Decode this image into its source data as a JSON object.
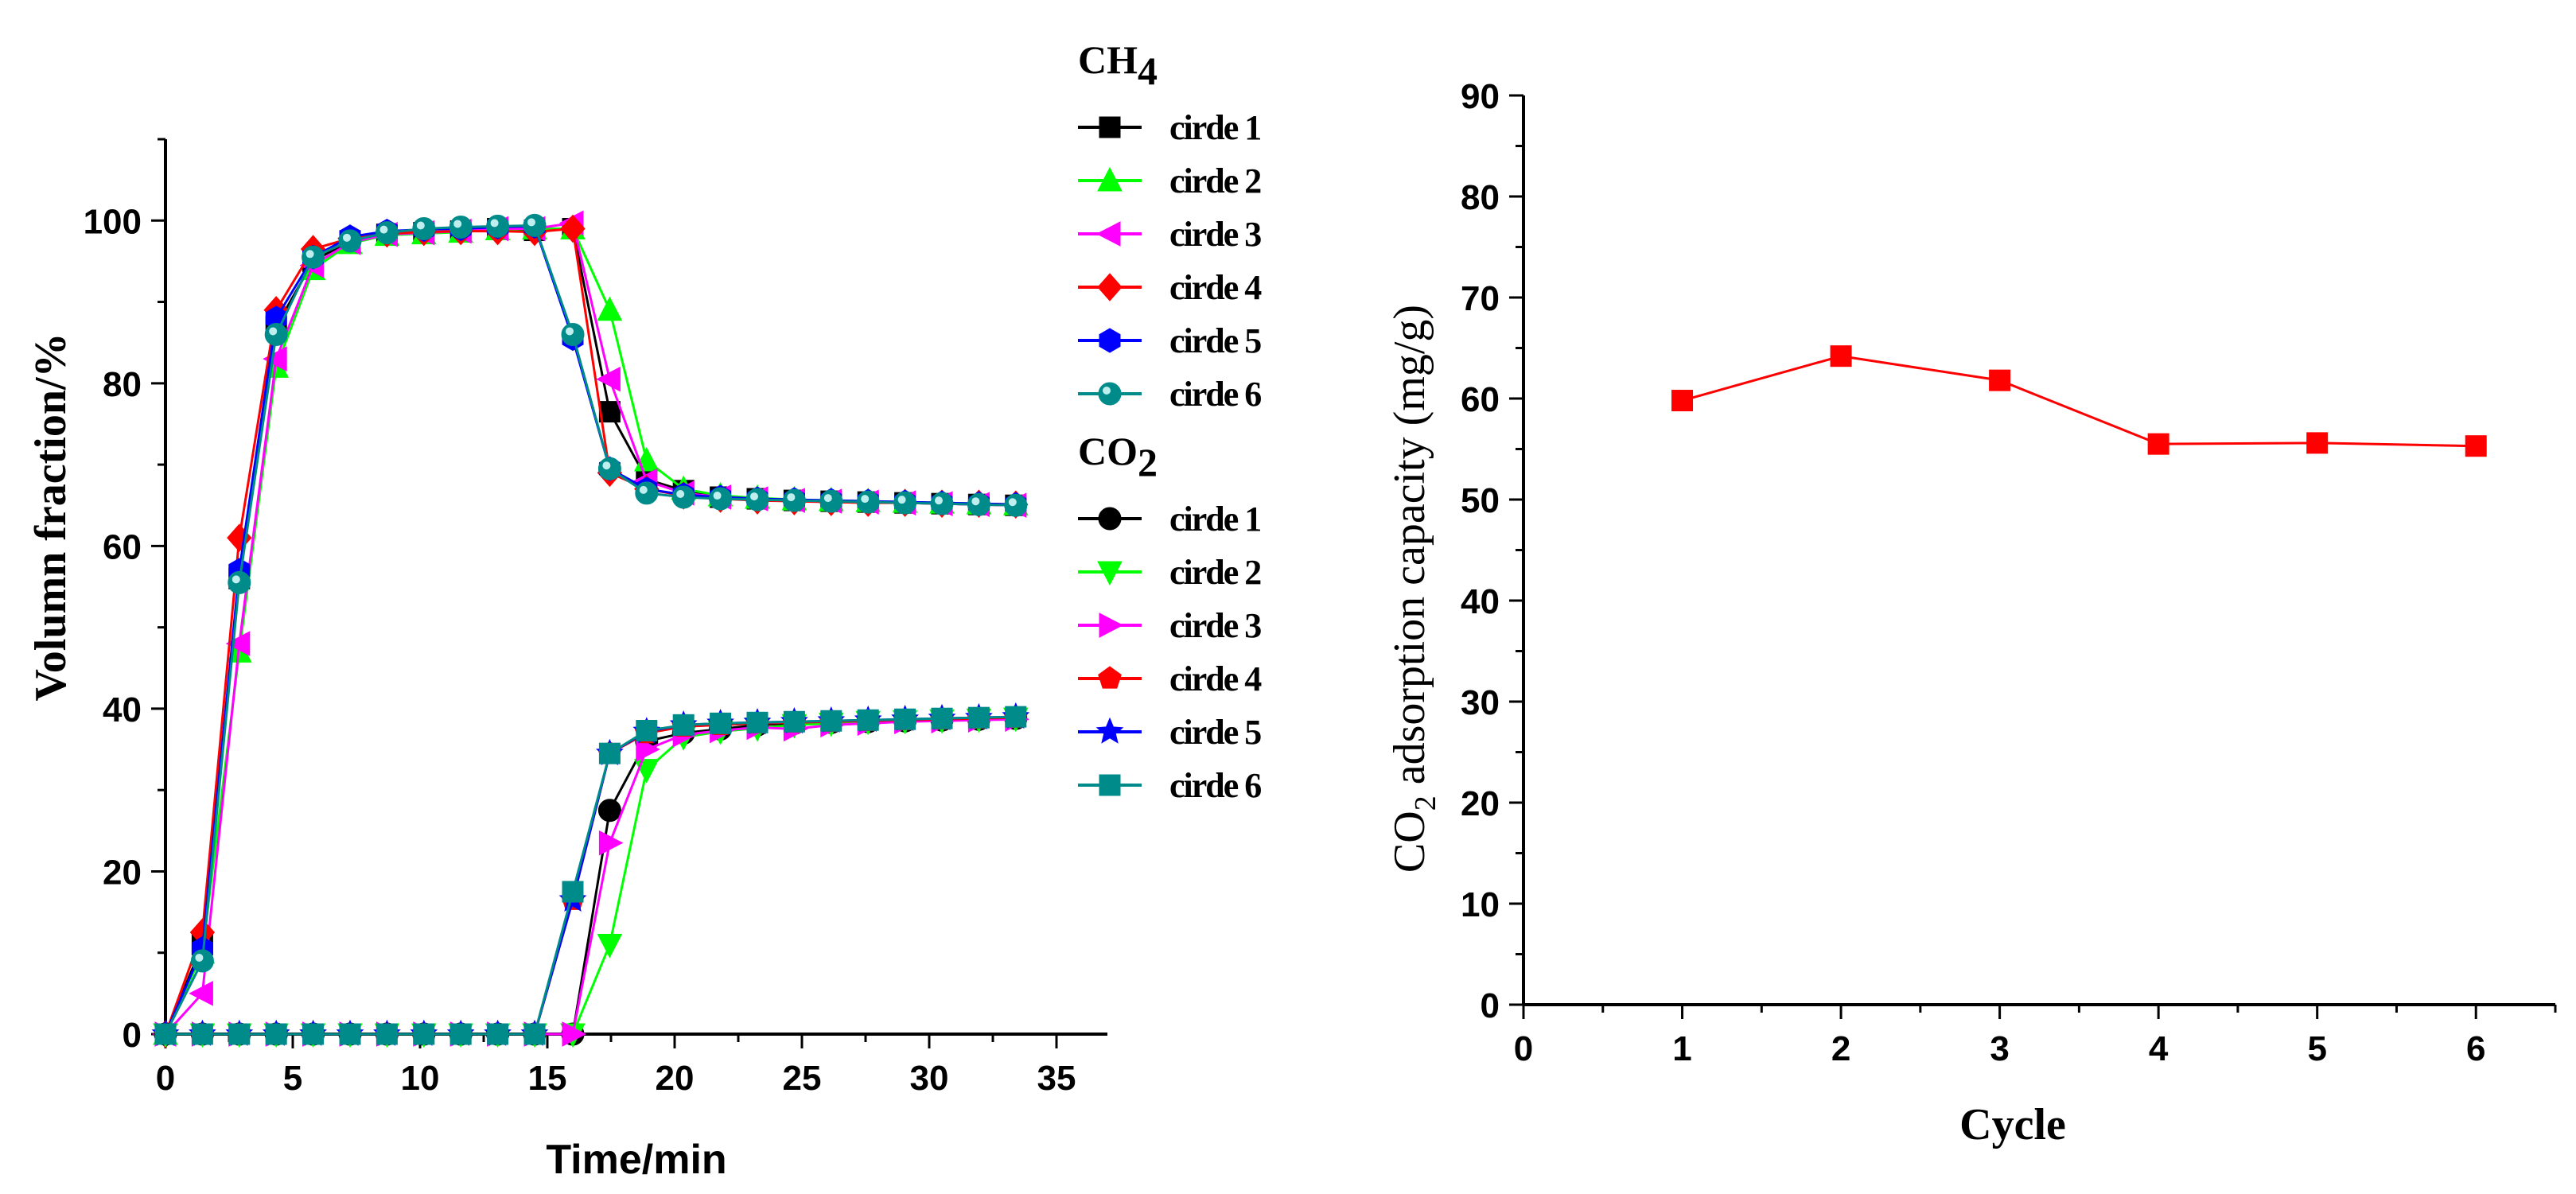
{
  "chart_data": [
    {
      "type": "line",
      "title": "",
      "xlabel": "Time/min",
      "ylabel": "Volumn fraction/%",
      "xlim": [
        0,
        37
      ],
      "ylim": [
        0,
        110
      ],
      "xticks": [
        0,
        5,
        10,
        15,
        20,
        25,
        30,
        35
      ],
      "yticks": [
        0,
        20,
        40,
        60,
        80,
        100
      ],
      "x": [
        0,
        1.45,
        2.9,
        4.35,
        5.8,
        7.25,
        8.7,
        10.15,
        11.6,
        13.05,
        14.5,
        16.0,
        17.45,
        18.9,
        20.35,
        21.8,
        23.25,
        24.7,
        26.15,
        27.6,
        29.05,
        30.5,
        31.95,
        33.4
      ],
      "legend_groups": [
        {
          "heading_main": "CH",
          "heading_sub": "4",
          "series": [
            {
              "name": "cirde 1",
              "color": "#000000",
              "marker": "square",
              "values": [
                0,
                11,
                56,
                87,
                95,
                97.5,
                98.3,
                98.5,
                98.7,
                99,
                98.8,
                99,
                76.5,
                68.2,
                66.8,
                66,
                65.8,
                65.6,
                65.5,
                65.4,
                65.3,
                65.2,
                65.1,
                65
              ]
            },
            {
              "name": "cirde 2",
              "color": "#00ff00",
              "marker": "triangle-up",
              "values": [
                0,
                10,
                47,
                82,
                94,
                97.2,
                98.2,
                98.4,
                98.6,
                98.9,
                99,
                99,
                89,
                70.5,
                67,
                66.2,
                65.9,
                65.7,
                65.6,
                65.5,
                65.4,
                65.3,
                65.2,
                65.1
              ]
            },
            {
              "name": "cirde 3",
              "color": "#ff00ff",
              "marker": "triangle-left",
              "values": [
                0,
                5,
                48,
                83,
                94.5,
                97.3,
                98.3,
                98.5,
                98.7,
                99,
                99,
                99.7,
                80.5,
                68,
                66.5,
                66,
                65.8,
                65.6,
                65.5,
                65.4,
                65.3,
                65.2,
                65.1,
                65
              ]
            },
            {
              "name": "cirde 4",
              "color": "#ff0000",
              "marker": "diamond",
              "values": [
                0,
                12.5,
                61,
                89,
                96.5,
                97.8,
                98.4,
                98.6,
                98.7,
                98.7,
                98.6,
                99,
                69,
                67,
                66.2,
                65.8,
                65.6,
                65.5,
                65.4,
                65.3,
                65.3,
                65.2,
                65.2,
                65.1
              ]
            },
            {
              "name": "cirde 5",
              "color": "#0000ff",
              "marker": "hexagon",
              "values": [
                0,
                10.5,
                57,
                88,
                95.5,
                98,
                98.7,
                98.9,
                99,
                99.2,
                99.3,
                85.5,
                69.5,
                67,
                66.3,
                66,
                65.8,
                65.7,
                65.6,
                65.5,
                65.4,
                65.3,
                65.2,
                65.1
              ]
            },
            {
              "name": "cirde 6",
              "color": "#008b8b",
              "marker": "sphere",
              "values": [
                0,
                9,
                55.5,
                86,
                95.5,
                97.5,
                98.5,
                99,
                99.2,
                99.3,
                99.4,
                86,
                69.5,
                66.5,
                66,
                65.8,
                65.7,
                65.6,
                65.5,
                65.4,
                65.3,
                65.2,
                65.1,
                65
              ]
            }
          ]
        },
        {
          "heading_main": "CO",
          "heading_sub": "2",
          "series": [
            {
              "name": "cirde 1",
              "color": "#000000",
              "marker": "circle",
              "values": [
                0,
                0,
                0,
                0,
                0,
                0,
                0,
                0,
                0,
                0,
                0,
                0,
                27.5,
                36,
                37,
                37.5,
                38,
                38.2,
                38.3,
                38.4,
                38.5,
                38.6,
                38.7,
                38.8
              ]
            },
            {
              "name": "cirde 2",
              "color": "#00ff00",
              "marker": "triangle-down",
              "values": [
                0,
                0,
                0,
                0,
                0,
                0,
                0,
                0,
                0,
                0,
                0,
                0,
                11,
                32.5,
                36.5,
                37.2,
                37.6,
                38,
                38.2,
                38.4,
                38.5,
                38.6,
                38.7,
                38.8
              ]
            },
            {
              "name": "cirde 3",
              "color": "#ff00ff",
              "marker": "triangle-right",
              "values": [
                0,
                0,
                0,
                0,
                0,
                0,
                0,
                0,
                0,
                0,
                0,
                0,
                23.5,
                35,
                36.8,
                37.3,
                37.7,
                37.5,
                38,
                38.2,
                38.4,
                38.5,
                38.6,
                38.7
              ]
            },
            {
              "name": "cirde 4",
              "color": "#ff0000",
              "marker": "pentagon",
              "values": [
                0,
                0,
                0,
                0,
                0,
                0,
                0,
                0,
                0,
                0,
                0,
                16.5,
                34.5,
                37,
                37.8,
                38,
                38.2,
                38.3,
                38.4,
                38.5,
                38.6,
                38.7,
                38.8,
                38.9
              ]
            },
            {
              "name": "cirde 5",
              "color": "#0000ff",
              "marker": "star",
              "values": [
                0,
                0,
                0,
                0,
                0,
                0,
                0,
                0,
                0,
                0,
                0,
                16.5,
                34.5,
                37.2,
                38,
                38.2,
                38.3,
                38.4,
                38.5,
                38.6,
                38.7,
                38.8,
                38.9,
                39
              ]
            },
            {
              "name": "cirde 6",
              "color": "#008b8b",
              "marker": "square",
              "values": [
                0,
                0,
                0,
                0,
                0,
                0,
                0,
                0,
                0,
                0,
                0,
                17.5,
                34.5,
                37.3,
                38,
                38.2,
                38.3,
                38.4,
                38.5,
                38.6,
                38.7,
                38.8,
                38.9,
                39
              ]
            }
          ]
        }
      ]
    },
    {
      "type": "line",
      "title": "",
      "xlabel": "Cycle",
      "ylabel_main": "CO",
      "ylabel_sub": "2",
      "ylabel_rest": " adsorption capacity (mg/g)",
      "xlim": [
        0,
        6.5
      ],
      "ylim": [
        0,
        90
      ],
      "xticks": [
        0,
        1,
        2,
        3,
        4,
        5,
        6
      ],
      "yticks": [
        0,
        10,
        20,
        30,
        40,
        50,
        60,
        70,
        80,
        90
      ],
      "series": [
        {
          "name": "CO2 adsorption capacity",
          "color": "#ff0000",
          "marker": "square",
          "x": [
            1,
            2,
            3,
            4,
            5,
            6
          ],
          "values": [
            59.8,
            64.2,
            61.8,
            55.5,
            55.6,
            55.3
          ]
        }
      ]
    }
  ]
}
